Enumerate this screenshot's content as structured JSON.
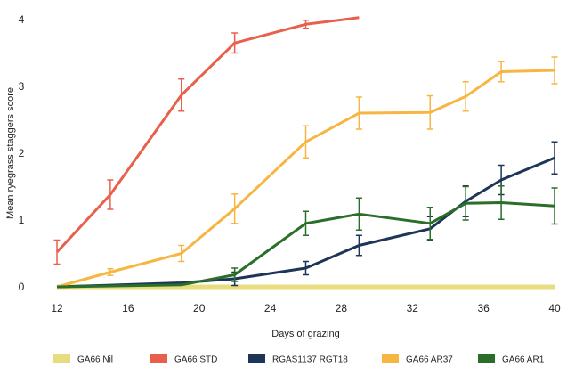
{
  "chart_data": {
    "type": "line",
    "title": "",
    "xlabel": "Days of grazing",
    "ylabel": "Mean ryegrass staggers score",
    "xlim": [
      12,
      40
    ],
    "ylim": [
      0,
      4
    ],
    "x_ticks": [
      "12",
      "16",
      "20",
      "24",
      "28",
      "32",
      "36",
      "40"
    ],
    "y_ticks": [
      "0",
      "1",
      "2",
      "3",
      "4"
    ],
    "legend_position": "bottom",
    "grid": false,
    "series": [
      {
        "name": "GA66 Nil",
        "color": "#e8dc80",
        "x": [
          12,
          40
        ],
        "y": [
          0,
          0
        ],
        "err": [
          0,
          0
        ]
      },
      {
        "name": "GA66 STD",
        "color": "#e8604c",
        "x": [
          12,
          15,
          19,
          22,
          26,
          29
        ],
        "y": [
          0.52,
          1.38,
          2.87,
          3.65,
          3.93,
          4.03
        ],
        "err": [
          0.18,
          0.22,
          0.24,
          0.15,
          0.06,
          0
        ]
      },
      {
        "name": "RGAS1137 RGT18",
        "color": "#1d3557",
        "x": [
          12,
          19,
          22,
          26,
          29,
          33,
          35,
          37,
          40
        ],
        "y": [
          0,
          0.06,
          0.12,
          0.28,
          0.62,
          0.87,
          1.28,
          1.6,
          1.93
        ],
        "err": [
          0,
          0,
          0.1,
          0.1,
          0.15,
          0.18,
          0.23,
          0.22,
          0.24
        ]
      },
      {
        "name": "GA66 AR37",
        "color": "#f7b542",
        "x": [
          12,
          15,
          19,
          22,
          26,
          29,
          33,
          35,
          37,
          40
        ],
        "y": [
          0,
          0.22,
          0.5,
          1.17,
          2.17,
          2.6,
          2.61,
          2.85,
          3.22,
          3.24
        ],
        "err": [
          0,
          0.05,
          0.12,
          0.22,
          0.24,
          0.24,
          0.25,
          0.22,
          0.15,
          0.2
        ]
      },
      {
        "name": "GA66 AR1",
        "color": "#2a6e2a",
        "x": [
          12,
          19,
          22,
          26,
          29,
          33,
          35,
          37,
          40
        ],
        "y": [
          0,
          0.03,
          0.18,
          0.95,
          1.09,
          0.95,
          1.25,
          1.26,
          1.21
        ],
        "err": [
          0,
          0,
          0.1,
          0.18,
          0.24,
          0.24,
          0.25,
          0.25,
          0.27
        ]
      }
    ]
  }
}
